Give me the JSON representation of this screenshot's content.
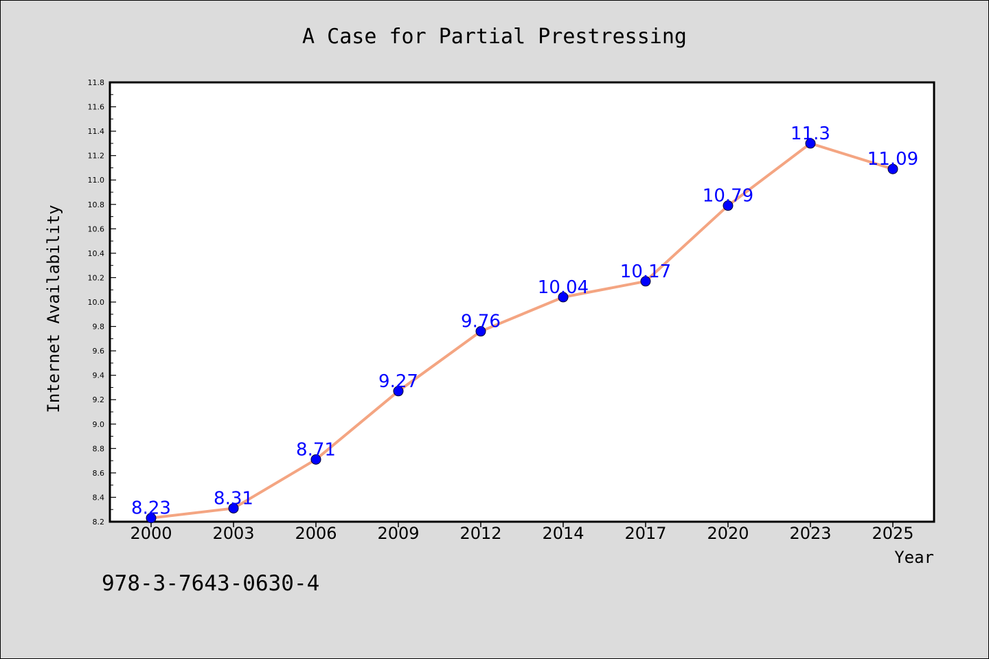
{
  "chart_data": {
    "type": "line",
    "title": "A Case for Partial Prestressing",
    "xlabel": "Year",
    "ylabel": "Internet Availability",
    "categories": [
      "2000",
      "2003",
      "2006",
      "2009",
      "2012",
      "2014",
      "2017",
      "2020",
      "2023",
      "2025"
    ],
    "series": [
      {
        "values": [
          8.23,
          8.31,
          8.71,
          9.27,
          9.76,
          10.04,
          10.17,
          10.79,
          11.3,
          11.09
        ]
      }
    ],
    "data_labels": [
      "8.23",
      "8.31",
      "8.71",
      "9.27",
      "9.76",
      "10.04",
      "10.17",
      "10.79",
      "11.3",
      "11.09"
    ],
    "ylim": [
      8.2,
      11.8
    ],
    "yticks": [
      "8.2",
      "8.4",
      "8.6",
      "8.8",
      "9.0",
      "9.2",
      "9.4",
      "9.6",
      "9.8",
      "10.0",
      "10.2",
      "10.4",
      "10.6",
      "10.8",
      "11.0",
      "11.2",
      "11.4",
      "11.6",
      "11.8"
    ],
    "grid": false,
    "line_color": "#f4a582",
    "marker_color": "#0000ff",
    "label_color": "#0000ff"
  },
  "footer_text": "978-3-7643-0630-4"
}
